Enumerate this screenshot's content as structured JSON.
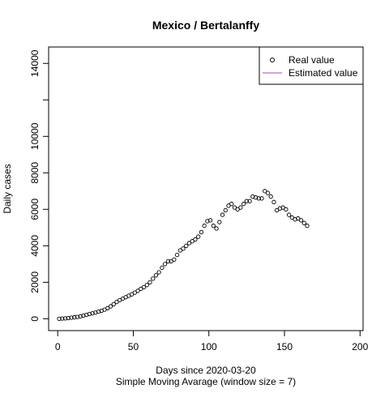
{
  "chart_data": {
    "type": "scatter",
    "title": "Mexico / Bertalanffy",
    "subtitle": "Simple Moving Avarage (window size = 7)",
    "xlabel": "Days since 2020-03-20",
    "ylabel": "Daily cases",
    "xlim": [
      -6,
      202
    ],
    "ylim": [
      -650,
      14900
    ],
    "xticks": [
      0,
      50,
      100,
      150,
      200
    ],
    "yticks": [
      0,
      2000,
      4000,
      6000,
      8000,
      10000,
      {
        "value": 12000,
        "label": null
      },
      14000
    ],
    "legend": "top-right",
    "series": [
      {
        "name": "Real value",
        "color": "#000000",
        "marker": "circle",
        "x": [
          1,
          3,
          5,
          7,
          9,
          11,
          13,
          15,
          17,
          19,
          21,
          23,
          25,
          27,
          29,
          31,
          33,
          35,
          37,
          39,
          41,
          43,
          45,
          47,
          49,
          51,
          53,
          55,
          57,
          59,
          61,
          63,
          65,
          67,
          69,
          71,
          73,
          75,
          77,
          79,
          81,
          83,
          85,
          87,
          89,
          91,
          93,
          95,
          97,
          99,
          101,
          103,
          105,
          107,
          109,
          111,
          113,
          115,
          117,
          119,
          121,
          123,
          125,
          127,
          129,
          131,
          133,
          135,
          137,
          139,
          141,
          143,
          145,
          147,
          149,
          151,
          153,
          155,
          157,
          159,
          161,
          163,
          165
        ],
        "values": [
          0,
          10,
          20,
          40,
          60,
          80,
          100,
          130,
          170,
          210,
          260,
          300,
          340,
          390,
          440,
          500,
          580,
          680,
          800,
          920,
          1020,
          1100,
          1180,
          1260,
          1340,
          1430,
          1530,
          1640,
          1730,
          1850,
          2000,
          2200,
          2380,
          2550,
          2800,
          3000,
          3150,
          3150,
          3250,
          3500,
          3750,
          3850,
          4000,
          4150,
          4250,
          4350,
          4500,
          4750,
          5100,
          5350,
          5400,
          5100,
          4950,
          5300,
          5700,
          5950,
          6200,
          6300,
          6100,
          6000,
          6100,
          6300,
          6450,
          6450,
          6700,
          6650,
          6600,
          6600,
          7000,
          6900,
          6700,
          6400,
          5950,
          6050,
          6100,
          6000,
          5700,
          5550,
          5450,
          5500,
          5400,
          5250,
          5100
        ]
      },
      {
        "name": "Estimated value",
        "color": "#9e4fa5",
        "marker": "line"
      }
    ]
  }
}
